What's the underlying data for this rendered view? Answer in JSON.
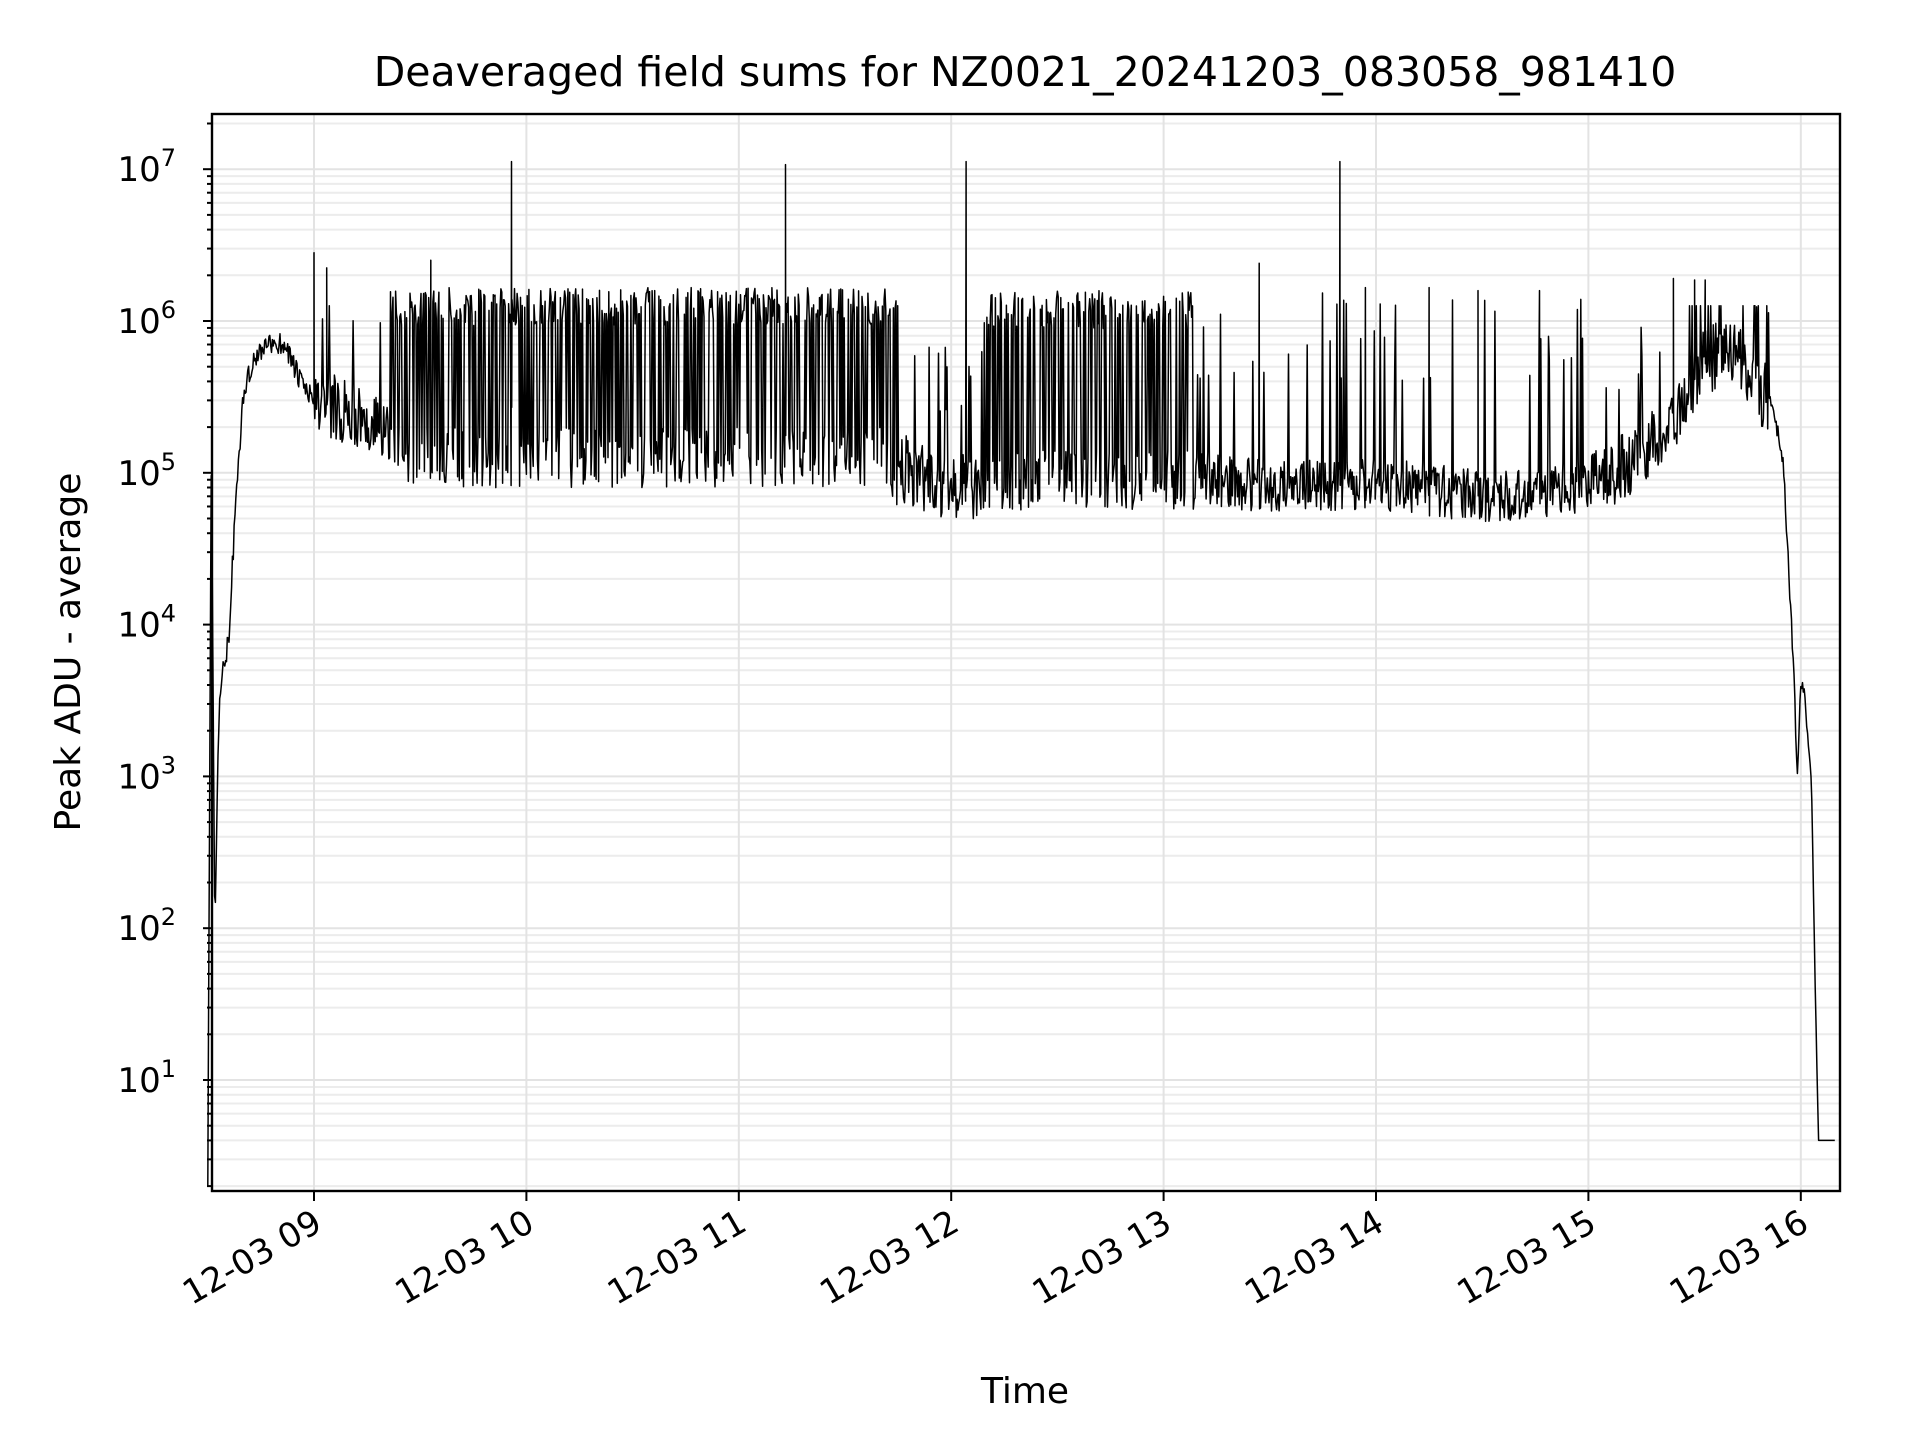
{
  "chart_data": {
    "type": "line",
    "title": "Deaveraged field sums for NZ0021_20241203_083058_981410",
    "xlabel": "Time",
    "ylabel": "Peak ADU - average",
    "yscale": "log",
    "ylim": [
      1.7,
      24000000
    ],
    "xlim": [
      "2024-12-03 08:30",
      "2024-12-03 16:10"
    ],
    "grid": "major and minor",
    "x_tick_labels": [
      "12-03 09",
      "12-03 10",
      "12-03 11",
      "12-03 12",
      "12-03 13",
      "12-03 14",
      "12-03 15",
      "12-03 16"
    ],
    "x_tick_values": [
      "2024-12-03 09:00",
      "2024-12-03 10:00",
      "2024-12-03 11:00",
      "2024-12-03 12:00",
      "2024-12-03 13:00",
      "2024-12-03 14:00",
      "2024-12-03 15:00",
      "2024-12-03 16:00"
    ],
    "y_ticks": [
      {
        "base": "10",
        "exp": "1",
        "value": 10
      },
      {
        "base": "10",
        "exp": "2",
        "value": 100
      },
      {
        "base": "10",
        "exp": "3",
        "value": 1000
      },
      {
        "base": "10",
        "exp": "4",
        "value": 10000
      },
      {
        "base": "10",
        "exp": "5",
        "value": 100000
      },
      {
        "base": "10",
        "exp": "6",
        "value": 1000000
      },
      {
        "base": "10",
        "exp": "7",
        "value": 10000000
      }
    ],
    "series": [
      {
        "color": "#000000",
        "x": [
          "2024-12-03 08:30",
          "2024-12-03 08:31",
          "2024-12-03 08:32",
          "2024-12-03 08:33",
          "2024-12-03 08:34",
          "2024-12-03 08:35",
          "2024-12-03 08:36",
          "2024-12-03 08:38",
          "2024-12-03 08:40",
          "2024-12-03 08:42",
          "2024-12-03 08:45",
          "2024-12-03 08:48",
          "2024-12-03 08:52",
          "2024-12-03 08:56",
          "2024-12-03 09:00",
          "2024-12-03 09:10",
          "2024-12-03 09:20",
          "2024-12-03 09:30",
          "2024-12-03 09:40",
          "2024-12-03 09:50",
          "2024-12-03 10:00",
          "2024-12-03 10:30",
          "2024-12-03 11:00",
          "2024-12-03 11:30",
          "2024-12-03 12:00",
          "2024-12-03 12:30",
          "2024-12-03 13:00",
          "2024-12-03 13:30",
          "2024-12-03 14:00",
          "2024-12-03 14:30",
          "2024-12-03 15:00",
          "2024-12-03 15:15",
          "2024-12-03 15:25",
          "2024-12-03 15:32",
          "2024-12-03 15:40",
          "2024-12-03 15:48",
          "2024-12-03 15:52",
          "2024-12-03 15:55",
          "2024-12-03 15:58",
          "2024-12-03 15:59",
          "2024-12-03 16:00",
          "2024-12-03 16:01",
          "2024-12-03 16:03",
          "2024-12-03 16:04",
          "2024-12-03 16:05",
          "2024-12-03 16:10"
        ],
        "y": [
          2,
          150000,
          90,
          2000,
          5000,
          6000,
          8000,
          80000,
          300000,
          500000,
          650000,
          720000,
          700000,
          400000,
          300000,
          250000,
          180000,
          150000,
          400000,
          300000,
          250000,
          200000,
          200000,
          150000,
          80000,
          90000,
          100000,
          80000,
          85000,
          70000,
          80000,
          130000,
          250000,
          500000,
          700000,
          350000,
          280000,
          120000,
          5000,
          1000,
          4000,
          3500,
          1000,
          50,
          4,
          4
        ]
      }
    ],
    "annotations": []
  }
}
